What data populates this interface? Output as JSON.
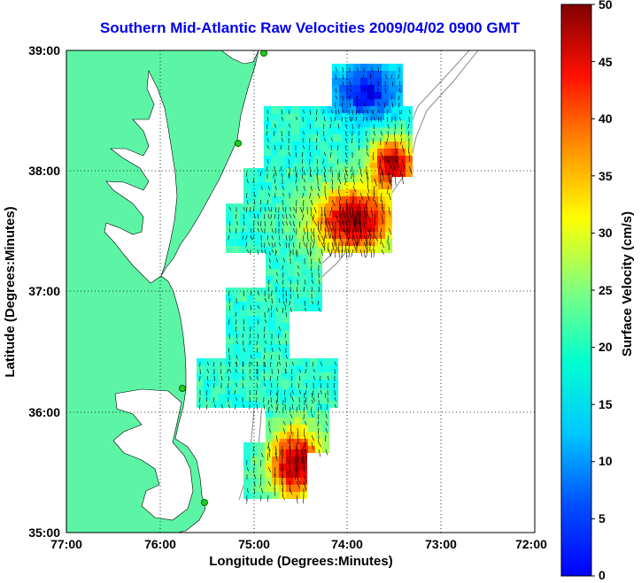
{
  "title": "Southern Mid-Atlantic Raw Velocities 2009/04/02 0900 GMT",
  "x_axis": {
    "label": "Longitude (Degrees:Minutes)",
    "ticks": [
      "77:00",
      "76:00",
      "75:00",
      "74:00",
      "73:00",
      "72:00"
    ]
  },
  "y_axis": {
    "label": "Latitude (Degrees:Minutes)",
    "ticks": [
      "39:00",
      "38:00",
      "37:00",
      "36:00",
      "35:00"
    ]
  },
  "colorbar": {
    "label": "Surface Velocity (cm/s)",
    "ticks": [
      "50",
      "45",
      "40",
      "35",
      "30",
      "25",
      "20",
      "15",
      "10",
      "5",
      "0"
    ],
    "min": 0,
    "max": 50,
    "colormap": "jet"
  },
  "map": {
    "lon_range": [
      -77,
      -72
    ],
    "lat_range": [
      35,
      39
    ],
    "land_color": "#5cf5a6",
    "ocean_color": "#ffffff",
    "grid": "dotted"
  }
}
